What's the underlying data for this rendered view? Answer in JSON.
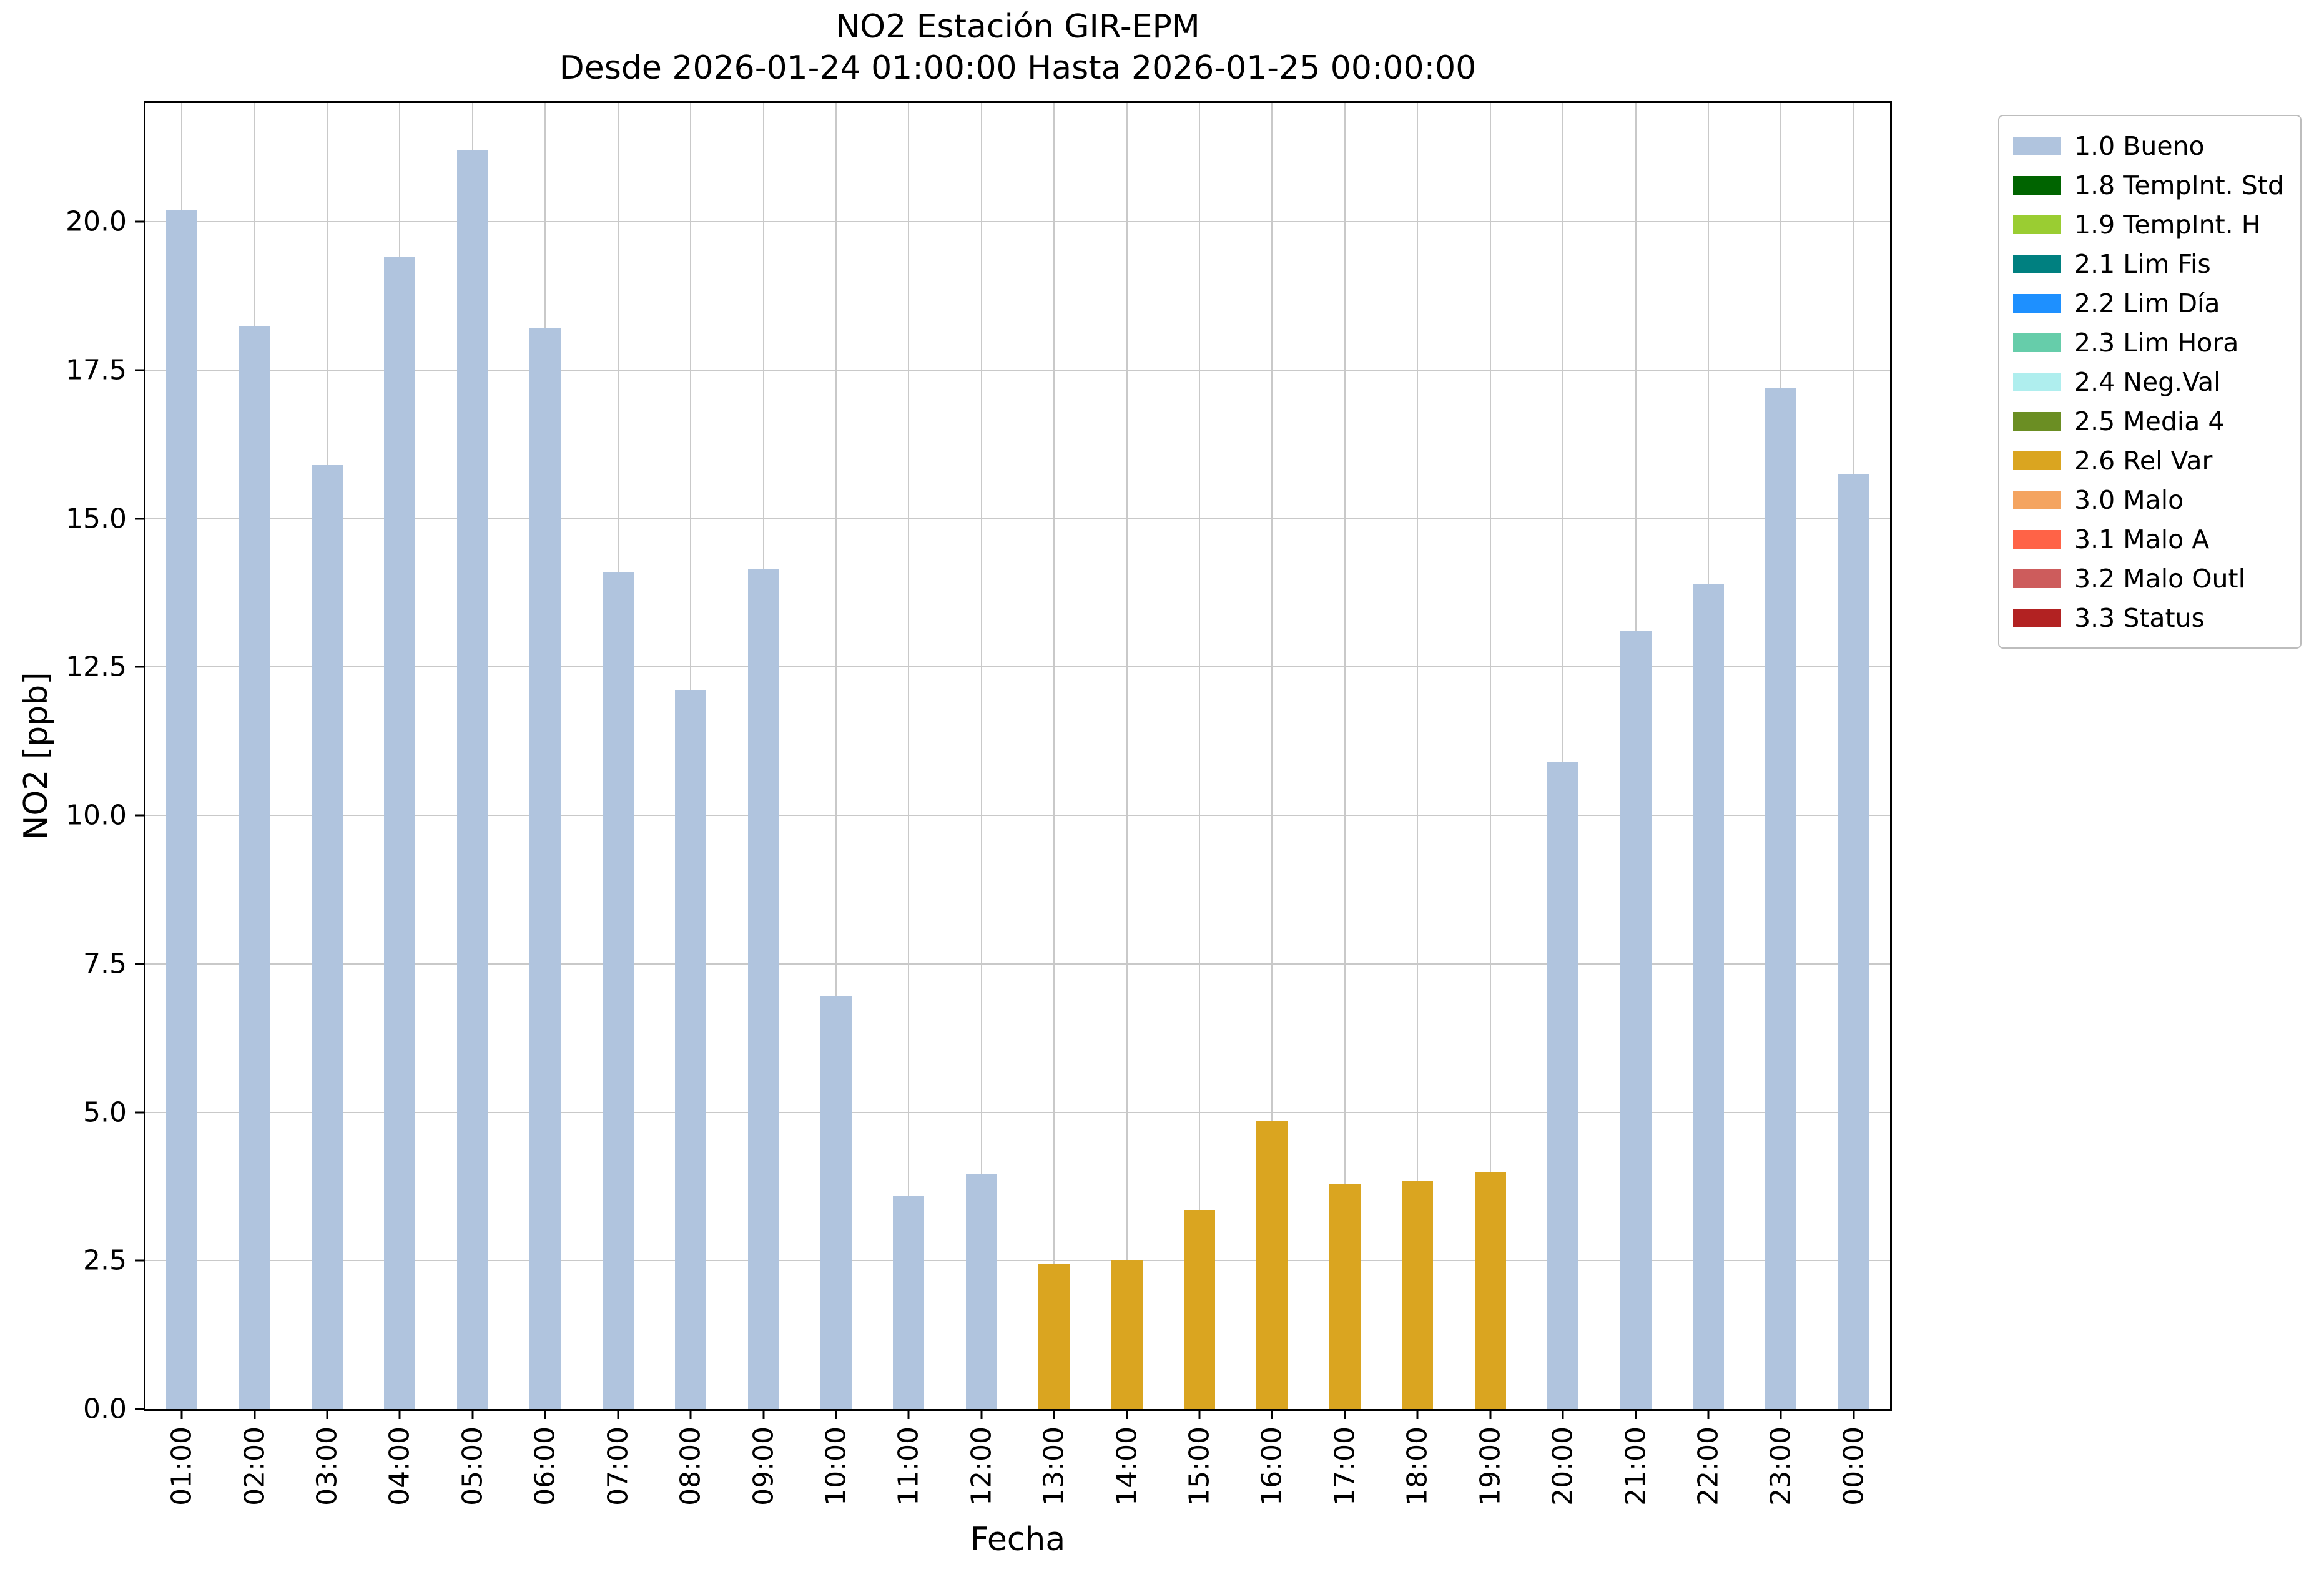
{
  "title": {
    "line1": "NO2 Estación GIR-EPM",
    "line2": "Desde 2026-01-24 01:00:00 Hasta 2026-01-25 00:00:00"
  },
  "axes": {
    "ylabel": "NO2 [ppb]",
    "xlabel": "Fecha",
    "yticks": [
      0.0,
      2.5,
      5.0,
      7.5,
      10.0,
      12.5,
      15.0,
      17.5,
      20.0
    ]
  },
  "chart_data": {
    "type": "bar",
    "title": "NO2 Estación GIR-EPM\nDesde 2026-01-24 01:00:00 Hasta 2026-01-25 00:00:00",
    "xlabel": "Fecha",
    "ylabel": "NO2 [ppb]",
    "ylim": [
      0,
      22
    ],
    "grid": true,
    "legend_position": "outside-right",
    "categories": [
      "01:00",
      "02:00",
      "03:00",
      "04:00",
      "05:00",
      "06:00",
      "07:00",
      "08:00",
      "09:00",
      "10:00",
      "11:00",
      "12:00",
      "13:00",
      "14:00",
      "15:00",
      "16:00",
      "17:00",
      "18:00",
      "19:00",
      "20:00",
      "21:00",
      "22:00",
      "23:00",
      "00:00"
    ],
    "values": [
      20.2,
      18.25,
      15.9,
      19.4,
      21.2,
      18.2,
      14.1,
      12.1,
      14.15,
      6.95,
      3.6,
      3.95,
      2.45,
      2.5,
      3.35,
      4.85,
      3.8,
      3.85,
      4.0,
      10.9,
      13.1,
      13.9,
      17.2,
      15.75
    ],
    "flags": [
      "1.0 Bueno",
      "1.0 Bueno",
      "1.0 Bueno",
      "1.0 Bueno",
      "1.0 Bueno",
      "1.0 Bueno",
      "1.0 Bueno",
      "1.0 Bueno",
      "1.0 Bueno",
      "1.0 Bueno",
      "1.0 Bueno",
      "1.0 Bueno",
      "2.6 Rel Var",
      "2.6 Rel Var",
      "2.6 Rel Var",
      "2.6 Rel Var",
      "2.6 Rel Var",
      "2.6 Rel Var",
      "2.6 Rel Var",
      "1.0 Bueno",
      "1.0 Bueno",
      "1.0 Bueno",
      "1.0 Bueno",
      "1.0 Bueno"
    ],
    "colors": {
      "1.0 Bueno": "#b0c4de",
      "2.6 Rel Var": "#daa520"
    }
  },
  "legend": {
    "items": [
      {
        "label": "1.0 Bueno",
        "color": "#b0c4de"
      },
      {
        "label": "1.8 TempInt. Std",
        "color": "#006400"
      },
      {
        "label": "1.9 TempInt. H",
        "color": "#9acd32"
      },
      {
        "label": "2.1 Lim Fis",
        "color": "#008080"
      },
      {
        "label": "2.2 Lim Día",
        "color": "#1e90ff"
      },
      {
        "label": "2.3 Lim Hora",
        "color": "#66cdaa"
      },
      {
        "label": "2.4 Neg.Val",
        "color": "#afeeee"
      },
      {
        "label": "2.5 Media 4",
        "color": "#6b8e23"
      },
      {
        "label": "2.6 Rel Var",
        "color": "#daa520"
      },
      {
        "label": "3.0 Malo",
        "color": "#f4a460"
      },
      {
        "label": "3.1 Malo A",
        "color": "#ff6347"
      },
      {
        "label": "3.2 Malo Outl",
        "color": "#cd5c5c"
      },
      {
        "label": "3.3 Status",
        "color": "#b22222"
      }
    ]
  }
}
